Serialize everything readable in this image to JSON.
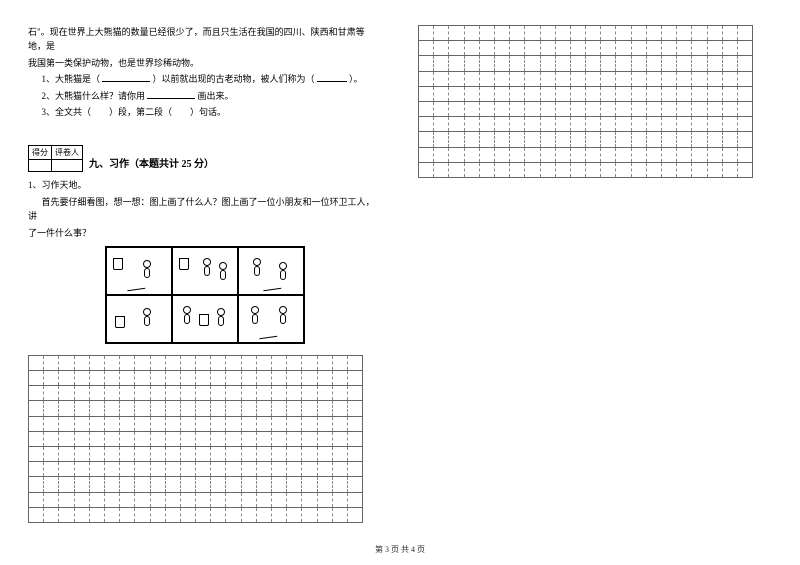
{
  "col_left": {
    "reading": {
      "line1": "石\"。现在世界上大熊猫的数量已经很少了，而且只生活在我国的四川、陕西和甘肃等地，是",
      "line2": "我国第一类保护动物，也是世界珍稀动物。",
      "q1_pre": "1、大熊猫是（",
      "q1_mid": "）以前就出现的古老动物，被人们称为（",
      "q1_post": "）。",
      "q2_pre": "2、大熊猫什么样？请你用",
      "q2_post": "画出来。",
      "q3": "3、全文共（　　）段，第二段（　　）句话。"
    },
    "section9": {
      "score_h1": "得分",
      "score_h2": "评卷人",
      "title": "九、习作（本题共计 25 分）"
    },
    "writing_task": {
      "lead": "1、习作天地。",
      "p1": "首先要仔细看图，想一想：图上画了什么人？图上画了一位小朋友和一位环卫工人，讲",
      "p2": "了一件什么事？"
    },
    "grid": {
      "cols": 22,
      "rows": 11
    }
  },
  "col_right": {
    "grid": {
      "cols": 22,
      "rows": 10
    }
  },
  "footer": "第 3 页 共 4 页",
  "colors": {
    "text": "#000000",
    "bg": "#ffffff",
    "grid_dash": "#888888",
    "grid_solid": "#666666"
  }
}
